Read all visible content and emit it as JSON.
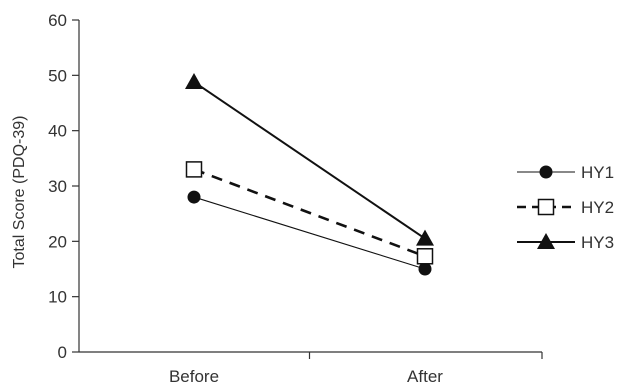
{
  "chart_data": {
    "type": "line",
    "categories": [
      "Before",
      "After"
    ],
    "ylabel": "Total Score (PDQ-39)",
    "xlabel": "",
    "ylim": [
      0,
      60
    ],
    "yticks": [
      0,
      10,
      20,
      30,
      40,
      50,
      60
    ],
    "grid": false,
    "legend_position": "right",
    "series": [
      {
        "name": "HY1",
        "values": [
          28,
          15
        ],
        "marker": "filled-circle",
        "line": "thin-solid",
        "color": "#111111"
      },
      {
        "name": "HY2",
        "values": [
          33,
          17.3
        ],
        "marker": "open-square",
        "line": "dashed",
        "color": "#111111"
      },
      {
        "name": "HY3",
        "values": [
          48.8,
          20.5
        ],
        "marker": "filled-triangle",
        "line": "thick-solid",
        "color": "#111111"
      }
    ]
  }
}
